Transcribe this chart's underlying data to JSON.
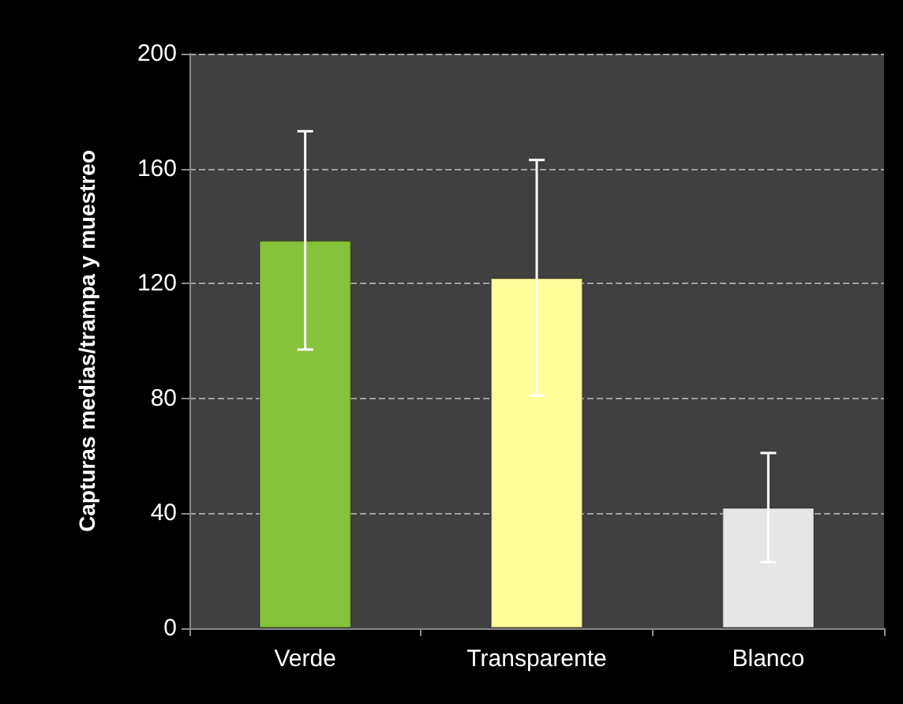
{
  "chart_data": {
    "type": "bar",
    "ylabel": "Capturas medias/trampa y muestreo",
    "categories": [
      "Verde",
      "Transparente",
      "Blanco"
    ],
    "values": [
      135,
      122,
      42
    ],
    "colors": [
      "#86c33a",
      "#ffff99",
      "#e6e6e6"
    ],
    "errors": [
      38,
      41,
      19
    ],
    "ylim": [
      0,
      200
    ],
    "yticks": [
      0,
      40,
      80,
      120,
      160,
      200
    ],
    "grid": "y"
  }
}
